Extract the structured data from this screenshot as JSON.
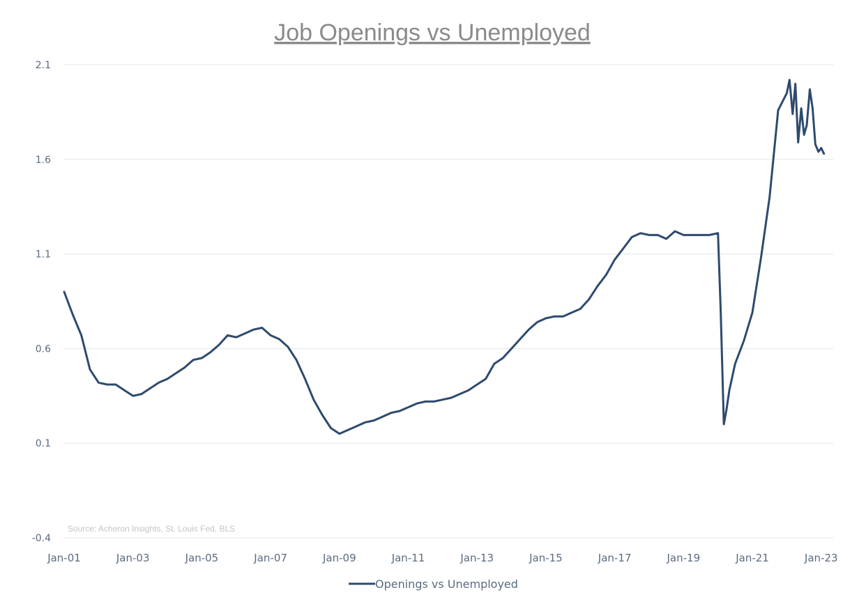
{
  "chart_data": {
    "type": "line",
    "title": "Job Openings vs Unemployed",
    "source": "Source: Acheron Insights, St. Louis Fed, BLS",
    "xlabel": "",
    "ylabel": "",
    "ylim": [
      -0.4,
      2.1
    ],
    "yticks": [
      "2.1",
      "1.6",
      "1.1",
      "0.6",
      "0.1",
      "-0.4"
    ],
    "ytick_values": [
      2.1,
      1.6,
      1.1,
      0.6,
      0.1,
      -0.4
    ],
    "xticks": [
      "Jan-01",
      "Jan-03",
      "Jan-05",
      "Jan-07",
      "Jan-09",
      "Jan-11",
      "Jan-13",
      "Jan-15",
      "Jan-17",
      "Jan-19",
      "Jan-21",
      "Jan-23"
    ],
    "xtick_years": [
      2001,
      2003,
      2005,
      2007,
      2009,
      2011,
      2013,
      2015,
      2017,
      2019,
      2021,
      2023
    ],
    "grid": true,
    "legend": "bottom-center",
    "colors": {
      "line": "#2e4a6e"
    },
    "series": [
      {
        "name": "Openings vs Unemployed",
        "x": [
          2001.0,
          2001.25,
          2001.5,
          2001.75,
          2002.0,
          2002.25,
          2002.5,
          2002.75,
          2003.0,
          2003.25,
          2003.5,
          2003.75,
          2004.0,
          2004.25,
          2004.5,
          2004.75,
          2005.0,
          2005.25,
          2005.5,
          2005.75,
          2006.0,
          2006.25,
          2006.5,
          2006.75,
          2007.0,
          2007.25,
          2007.5,
          2007.75,
          2008.0,
          2008.25,
          2008.5,
          2008.75,
          2009.0,
          2009.25,
          2009.5,
          2009.75,
          2010.0,
          2010.25,
          2010.5,
          2010.75,
          2011.0,
          2011.25,
          2011.5,
          2011.75,
          2012.0,
          2012.25,
          2012.5,
          2012.75,
          2013.0,
          2013.25,
          2013.5,
          2013.75,
          2014.0,
          2014.25,
          2014.5,
          2014.75,
          2015.0,
          2015.25,
          2015.5,
          2015.75,
          2016.0,
          2016.25,
          2016.5,
          2016.75,
          2017.0,
          2017.25,
          2017.5,
          2017.75,
          2018.0,
          2018.25,
          2018.5,
          2018.75,
          2019.0,
          2019.25,
          2019.5,
          2019.75,
          2020.0,
          2020.08,
          2020.17,
          2020.25,
          2020.33,
          2020.5,
          2020.75,
          2021.0,
          2021.25,
          2021.5,
          2021.75,
          2022.0,
          2022.08,
          2022.17,
          2022.25,
          2022.33,
          2022.42,
          2022.5,
          2022.58,
          2022.67,
          2022.75,
          2022.83,
          2022.92,
          2023.0,
          2023.08
        ],
        "values": [
          0.9,
          0.78,
          0.67,
          0.49,
          0.42,
          0.41,
          0.41,
          0.38,
          0.35,
          0.36,
          0.39,
          0.42,
          0.44,
          0.47,
          0.5,
          0.54,
          0.55,
          0.58,
          0.62,
          0.67,
          0.66,
          0.68,
          0.7,
          0.71,
          0.67,
          0.65,
          0.61,
          0.54,
          0.44,
          0.33,
          0.25,
          0.18,
          0.15,
          0.17,
          0.19,
          0.21,
          0.22,
          0.24,
          0.26,
          0.27,
          0.29,
          0.31,
          0.32,
          0.32,
          0.33,
          0.34,
          0.36,
          0.38,
          0.41,
          0.44,
          0.52,
          0.55,
          0.6,
          0.65,
          0.7,
          0.74,
          0.76,
          0.77,
          0.77,
          0.79,
          0.81,
          0.86,
          0.93,
          0.99,
          1.07,
          1.13,
          1.19,
          1.21,
          1.2,
          1.2,
          1.18,
          1.22,
          1.2,
          1.2,
          1.2,
          1.2,
          1.21,
          0.8,
          0.2,
          0.28,
          0.38,
          0.52,
          0.64,
          0.79,
          1.08,
          1.4,
          1.86,
          1.95,
          2.02,
          1.84,
          2.0,
          1.69,
          1.87,
          1.73,
          1.78,
          1.97,
          1.87,
          1.68,
          1.64,
          1.66,
          1.63
        ]
      }
    ]
  }
}
